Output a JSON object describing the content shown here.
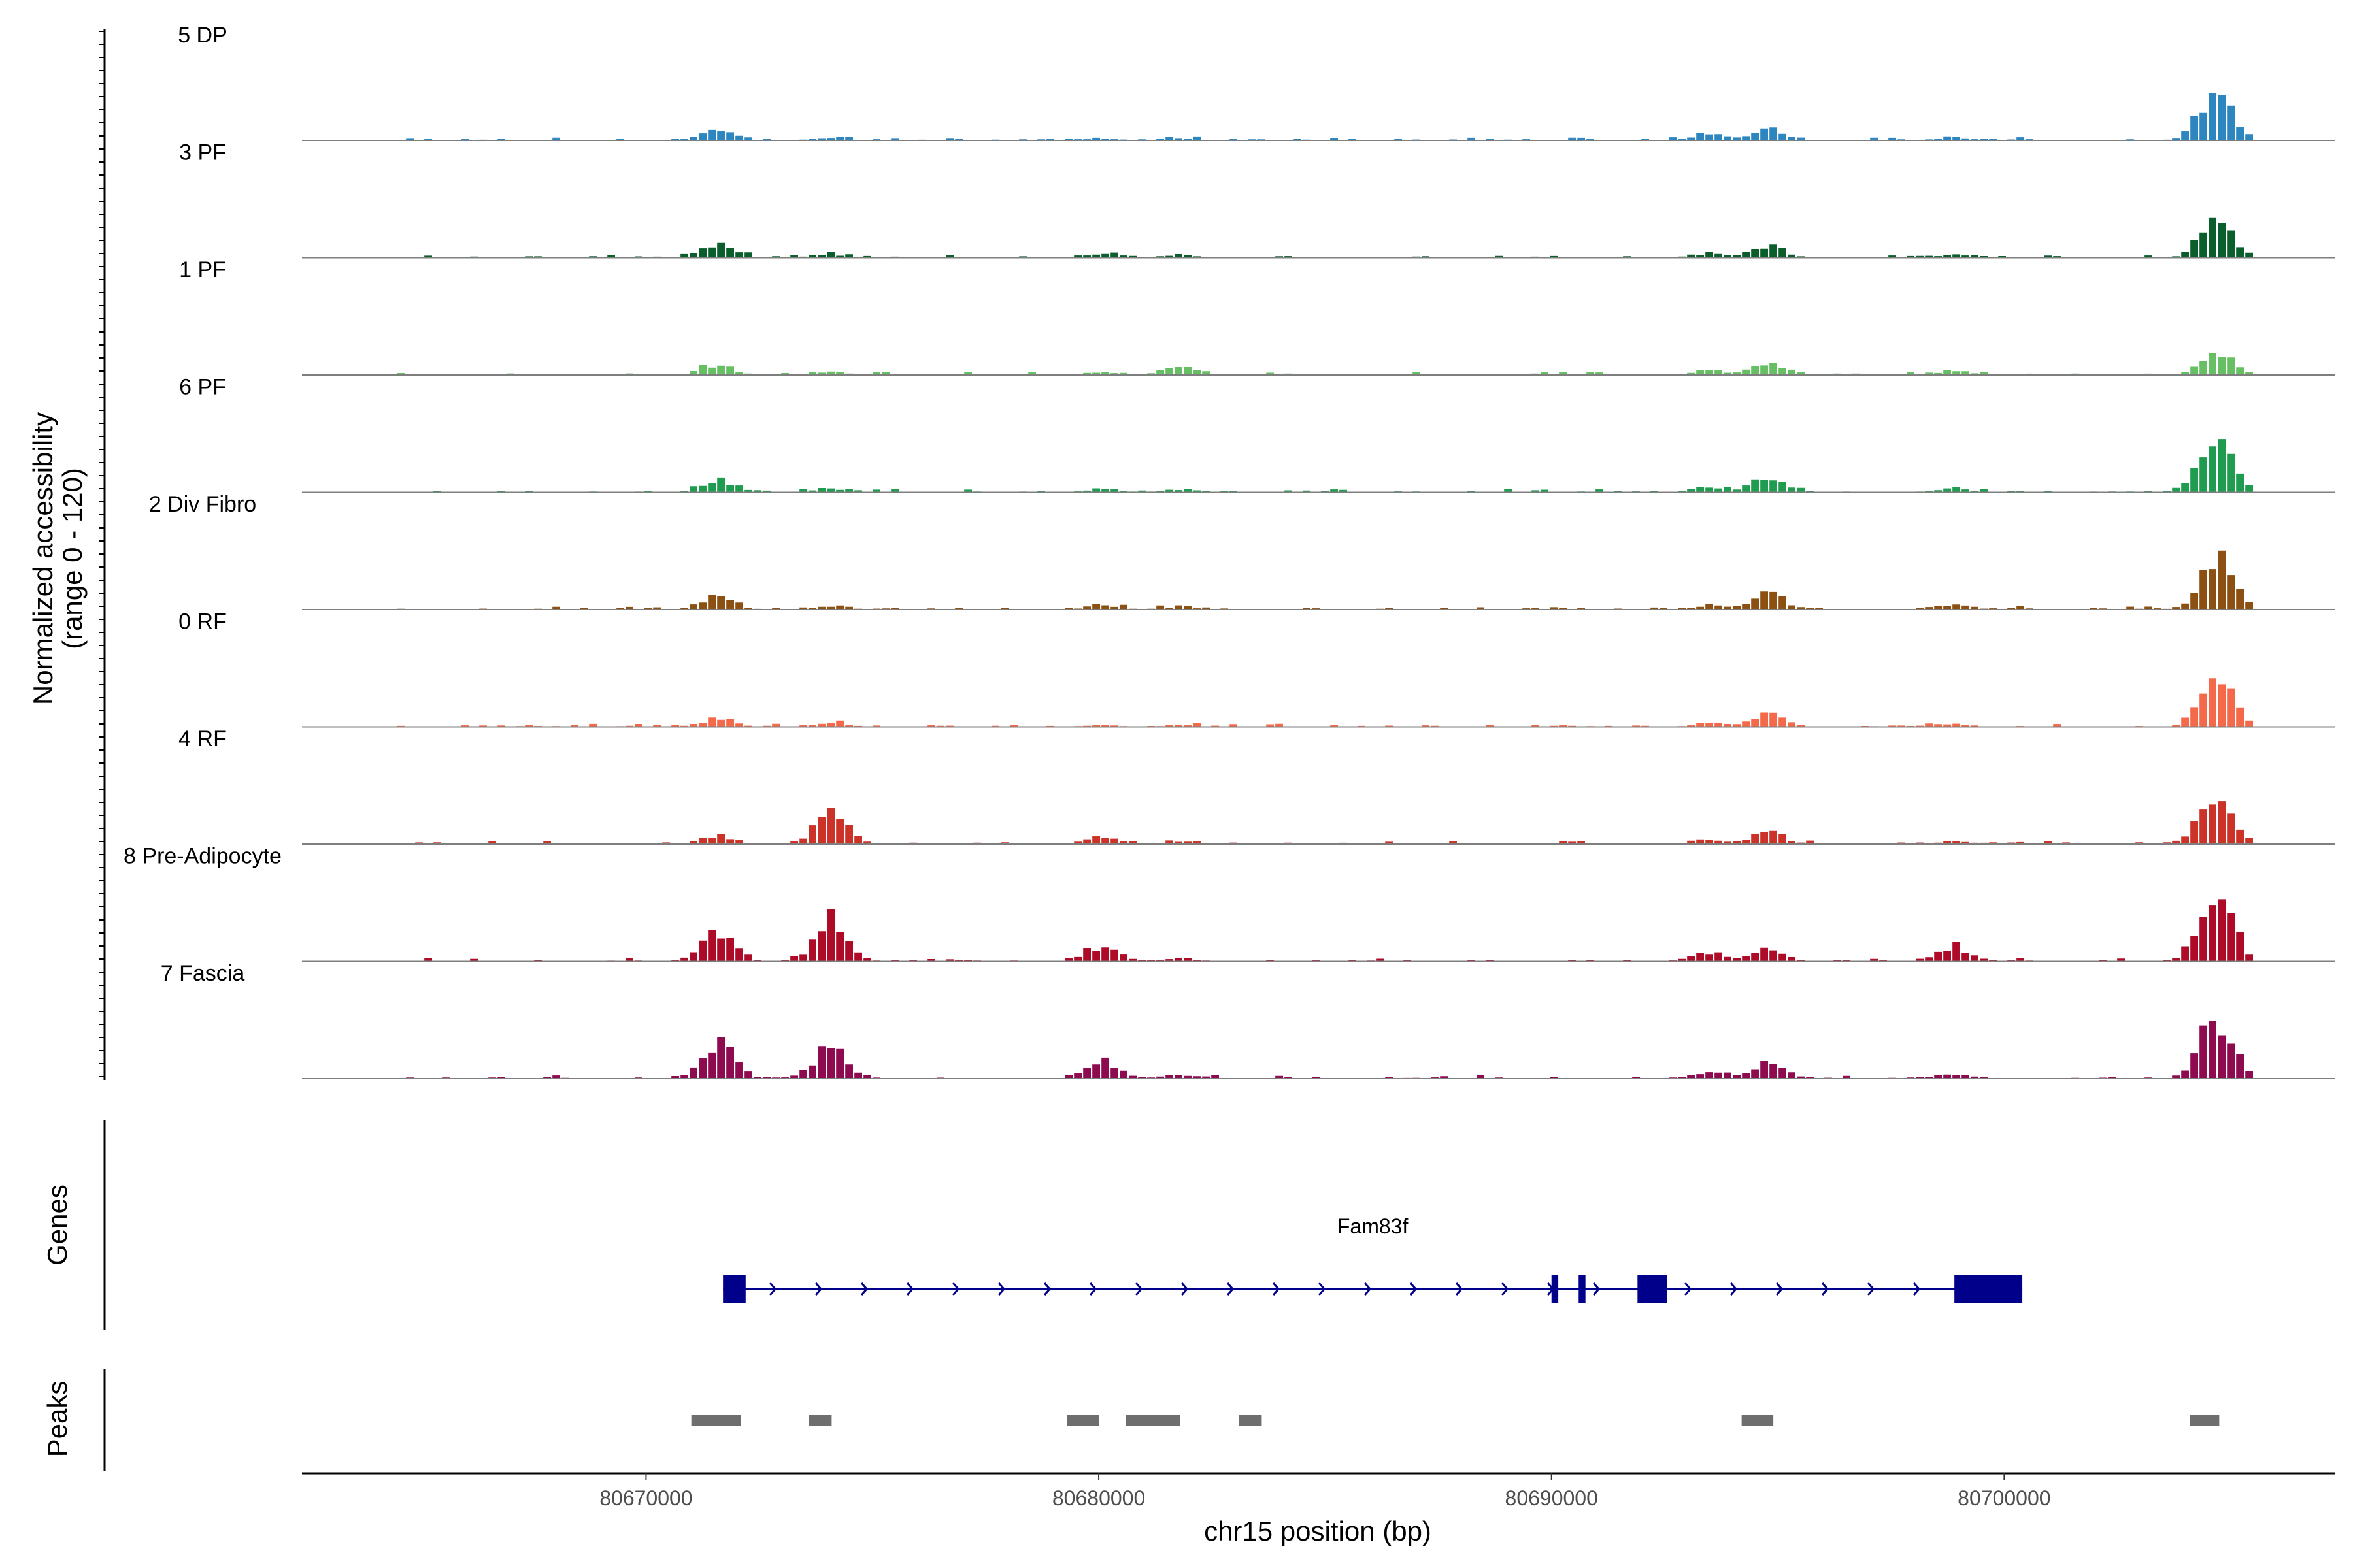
{
  "chart_data": {
    "type": "area",
    "title": "",
    "xlabel": "chr15 position (bp)",
    "ylabel": "Normalized accessibility",
    "ylabel_range": "(range 0 - 120)",
    "ylim": [
      0,
      120
    ],
    "xlim": [
      80662400,
      80707300
    ],
    "x_ticks": [
      80670000,
      80680000,
      80690000,
      80700000
    ],
    "x_tick_labels": [
      "80670000",
      "80680000",
      "80690000",
      "80700000"
    ],
    "data_start": 80664500,
    "data_end": 80705500,
    "peak_centers": [
      80671500,
      80674000,
      80680000,
      80681700,
      80693400,
      80694700,
      80698800,
      80704600
    ],
    "tracks": [
      {
        "name": "5 DP",
        "color": "#2e86c1",
        "heights": [
          12,
          3,
          2,
          2,
          8,
          14,
          3,
          60
        ]
      },
      {
        "name": "3 PF",
        "color": "#0a5e2c",
        "heights": [
          14,
          3,
          3,
          3,
          4,
          14,
          3,
          45
        ]
      },
      {
        "name": "1 PF",
        "color": "#66c063",
        "heights": [
          10,
          3,
          3,
          9,
          5,
          14,
          4,
          24
        ]
      },
      {
        "name": "6 PF",
        "color": "#1f9c4f",
        "heights": [
          14,
          4,
          3,
          3,
          5,
          16,
          4,
          64
        ]
      },
      {
        "name": "2 Div Fibro",
        "color": "#8b5012",
        "heights": [
          16,
          3,
          4,
          3,
          4,
          18,
          5,
          60
        ]
      },
      {
        "name": "0 RF",
        "color": "#f4694a",
        "heights": [
          8,
          4,
          2,
          2,
          4,
          16,
          3,
          54
        ]
      },
      {
        "name": "4 RF",
        "color": "#cc3328",
        "heights": [
          10,
          34,
          8,
          3,
          4,
          14,
          3,
          53
        ]
      },
      {
        "name": "8 Pre-Adipocyte",
        "color": "#ad0b27",
        "heights": [
          32,
          46,
          16,
          3,
          10,
          14,
          18,
          83
        ]
      },
      {
        "name": "7 Fascia",
        "color": "#8e0b4f",
        "heights": [
          42,
          36,
          20,
          4,
          8,
          18,
          5,
          68
        ]
      }
    ],
    "genes_label": "Genes",
    "gene": {
      "name": "Fam83f",
      "start": 80671700,
      "end": 80700400,
      "strand": "+",
      "exons": [
        [
          80671700,
          80672200
        ],
        [
          80690000,
          80690150
        ],
        [
          80690600,
          80690750
        ],
        [
          80691900,
          80692550
        ],
        [
          80698900,
          80700400
        ]
      ]
    },
    "peaks_label": "Peaks",
    "peaks": [
      [
        80671000,
        80672100
      ],
      [
        80673600,
        80674100
      ],
      [
        80679300,
        80680000
      ],
      [
        80680600,
        80681800
      ],
      [
        80683100,
        80683600
      ],
      [
        80694200,
        80694900
      ],
      [
        80704100,
        80704750
      ]
    ]
  }
}
